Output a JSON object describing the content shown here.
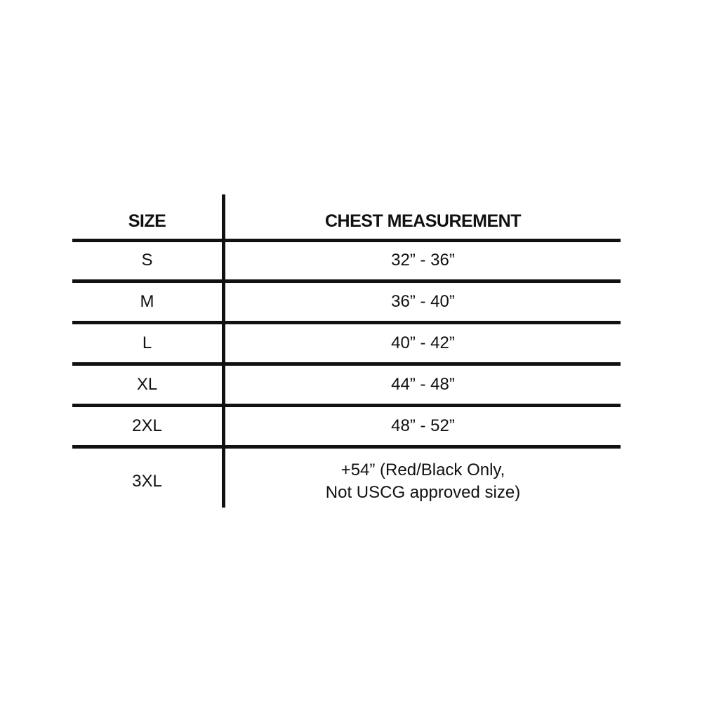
{
  "table": {
    "headers": [
      "SIZE",
      "CHEST MEASUREMENT"
    ],
    "rows": [
      {
        "size": "S",
        "chest": "32” - 36”"
      },
      {
        "size": "M",
        "chest": "36” - 40”"
      },
      {
        "size": "L",
        "chest": "40” - 42”"
      },
      {
        "size": "XL",
        "chest": "44” - 48”"
      },
      {
        "size": "2XL",
        "chest": "48” - 52”"
      },
      {
        "size": "3XL",
        "chest": "+54” (Red/Black Only,",
        "chest_line2": "Not USCG approved size)"
      }
    ]
  }
}
